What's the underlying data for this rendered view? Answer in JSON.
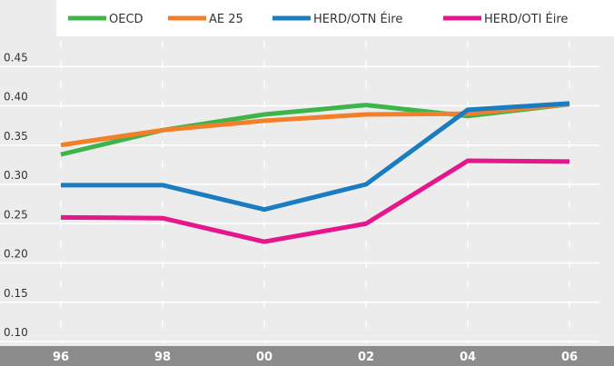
{
  "chart_data": {
    "type": "line",
    "categories": [
      "96",
      "98",
      "00",
      "02",
      "04",
      "06"
    ],
    "series": [
      {
        "name": "OECD",
        "color": "#3db54a",
        "values": [
          0.338,
          0.369,
          0.389,
          0.401,
          0.387,
          0.402
        ]
      },
      {
        "name": "AE 25",
        "color": "#f47f2a",
        "values": [
          0.35,
          0.369,
          0.381,
          0.389,
          0.39,
          0.402
        ]
      },
      {
        "name": "HERD/OTN Éire",
        "color": "#1a7cc1",
        "values": [
          0.299,
          0.299,
          0.268,
          0.3,
          0.395,
          0.403
        ]
      },
      {
        "name": "HERD/OTI Éire",
        "color": "#e6168c",
        "values": [
          0.258,
          0.257,
          0.227,
          0.25,
          0.33,
          0.329
        ]
      }
    ],
    "ylim": [
      0.1,
      0.5
    ],
    "yticks": [
      {
        "value": 0.1,
        "label": "0.10"
      },
      0.15,
      {
        "value": 0.2,
        "label": "0.20"
      },
      0.25,
      {
        "value": 0.3,
        "label": "0.30"
      },
      0.35,
      {
        "value": 0.4,
        "label": "0.40"
      },
      0.45
    ],
    "grid": true,
    "legend": "top"
  }
}
